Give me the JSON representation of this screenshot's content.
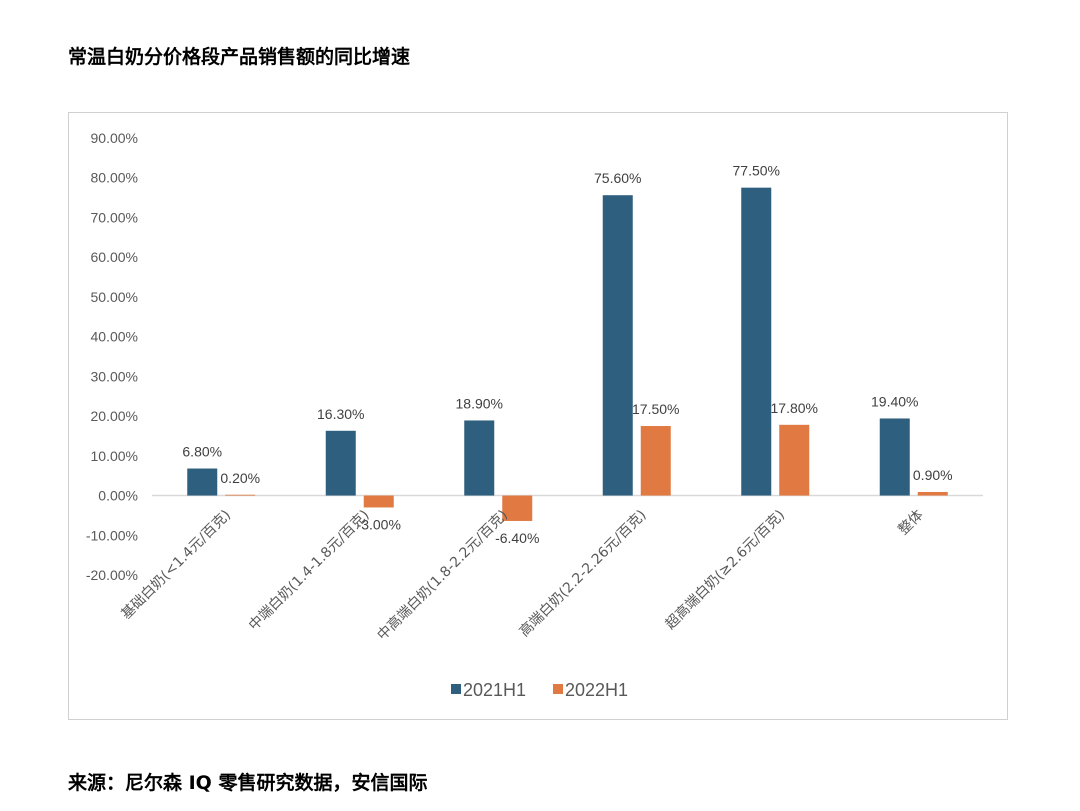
{
  "header": {
    "title": "常温白奶分价格段产品销售额的同比增速"
  },
  "footer": {
    "source": "来源：尼尔森 IQ 零售研究数据，安信国际"
  },
  "colors": {
    "series1": "#2e5f7f",
    "series2": "#e07a42",
    "axis": "#d9d9d9",
    "border": "#d0d0d0"
  },
  "chart_data": {
    "type": "bar",
    "title": "常温白奶分价格段产品销售额的同比增速",
    "categories": [
      "基础白奶(<1.4元/百克)",
      "中端白奶(1.4-1.8元/百克)",
      "中高端白奶(1.8-2.2元/百克)",
      "高端白奶(2.2-2.26元/百克)",
      "超高端白奶(≥2.6元/百克)",
      "整体"
    ],
    "series": [
      {
        "name": "2021H1",
        "values": [
          6.8,
          16.3,
          18.9,
          75.6,
          77.5,
          19.4
        ],
        "labels": [
          "6.80%",
          "16.30%",
          "18.90%",
          "75.60%",
          "77.50%",
          "19.40%"
        ]
      },
      {
        "name": "2022H1",
        "values": [
          0.2,
          -3.0,
          -6.4,
          17.5,
          17.8,
          0.9
        ],
        "labels": [
          "0.20%",
          "-3.00%",
          "-6.40%",
          "17.50%",
          "17.80%",
          "0.90%"
        ]
      }
    ],
    "ylim": [
      -20,
      90
    ],
    "yticks": [
      -20,
      -10,
      0,
      10,
      20,
      30,
      40,
      50,
      60,
      70,
      80,
      90
    ],
    "ytick_labels": [
      "-20.00%",
      "-10.00%",
      "0.00%",
      "10.00%",
      "20.00%",
      "30.00%",
      "40.00%",
      "50.00%",
      "60.00%",
      "70.00%",
      "80.00%",
      "90.00%"
    ],
    "grid": false,
    "legend": "bottom"
  }
}
